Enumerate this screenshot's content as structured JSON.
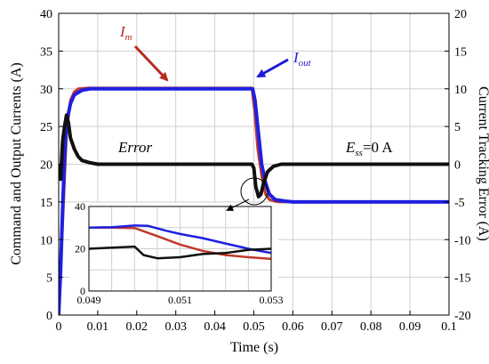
{
  "chart_data": [
    {
      "type": "line",
      "xlabel": "Time (s)",
      "ylabel_left": "Command and Output Currents (A)",
      "ylabel_right": "Current Tracking Error (A)",
      "xlim": [
        0,
        0.1
      ],
      "ylim_left": [
        0,
        40
      ],
      "ylim_right": [
        -20,
        20
      ],
      "grid": true,
      "x_ticks": [
        "0",
        "0.01",
        "0.02",
        "0.03",
        "0.04",
        "0.05",
        "0.06",
        "0.07",
        "0.08",
        "0.09",
        "0.1"
      ],
      "y_ticks_left": [
        "0",
        "5",
        "10",
        "15",
        "20",
        "25",
        "30",
        "35",
        "40"
      ],
      "y_ticks_right": [
        "-20",
        "-15",
        "-10",
        "-5",
        "0",
        "5",
        "10",
        "15",
        "20"
      ],
      "annotations": [
        {
          "label": "Im",
          "base": "I",
          "sub": "m",
          "color": "#b52a1d"
        },
        {
          "label": "Iout",
          "base": "I",
          "sub": "out",
          "color": "#1a1ad6"
        },
        {
          "label": "Error"
        },
        {
          "label": "Ess=0 A",
          "base": "E",
          "sub": "ss",
          "rest": "=0 A"
        }
      ],
      "series": [
        {
          "name": "Im",
          "color": "#c0392b",
          "axis": "left",
          "points": [
            [
              0,
              0
            ],
            [
              0.001,
              12
            ],
            [
              0.002,
              24
            ],
            [
              0.003,
              28.5
            ],
            [
              0.004,
              29.6
            ],
            [
              0.005,
              30
            ],
            [
              0.0075,
              30.1
            ],
            [
              0.01,
              30.1
            ],
            [
              0.02,
              30.1
            ],
            [
              0.03,
              30.1
            ],
            [
              0.04,
              30.1
            ],
            [
              0.0495,
              30.1
            ],
            [
              0.0502,
              27
            ],
            [
              0.051,
              22
            ],
            [
              0.052,
              18.5
            ],
            [
              0.053,
              16
            ],
            [
              0.054,
              15.3
            ],
            [
              0.056,
              15
            ],
            [
              0.06,
              15
            ],
            [
              0.07,
              15
            ],
            [
              0.08,
              15
            ],
            [
              0.09,
              15
            ],
            [
              0.1,
              15
            ]
          ]
        },
        {
          "name": "Iout",
          "color": "#1f1fe0",
          "axis": "left",
          "points": [
            [
              0,
              0
            ],
            [
              0.0005,
              6
            ],
            [
              0.001,
              14
            ],
            [
              0.0015,
              21
            ],
            [
              0.002,
              25.5
            ],
            [
              0.003,
              28
            ],
            [
              0.004,
              29.2
            ],
            [
              0.006,
              29.8
            ],
            [
              0.008,
              30
            ],
            [
              0.01,
              30
            ],
            [
              0.02,
              30
            ],
            [
              0.03,
              30
            ],
            [
              0.04,
              30
            ],
            [
              0.0497,
              30
            ],
            [
              0.0503,
              28.5
            ],
            [
              0.0508,
              26
            ],
            [
              0.0515,
              22.5
            ],
            [
              0.052,
              20
            ],
            [
              0.053,
              17.5
            ],
            [
              0.054,
              16
            ],
            [
              0.0555,
              15.3
            ],
            [
              0.058,
              15.1
            ],
            [
              0.06,
              15
            ],
            [
              0.07,
              15
            ],
            [
              0.08,
              15
            ],
            [
              0.09,
              15
            ],
            [
              0.1,
              15
            ]
          ]
        },
        {
          "name": "Error",
          "color": "#111111",
          "axis": "right",
          "points": [
            [
              0,
              0
            ],
            [
              0.0005,
              -2
            ],
            [
              0.001,
              3
            ],
            [
              0.0015,
              5
            ],
            [
              0.002,
              6.5
            ],
            [
              0.0025,
              5.5
            ],
            [
              0.003,
              3.5
            ],
            [
              0.004,
              2
            ],
            [
              0.005,
              1
            ],
            [
              0.006,
              0.5
            ],
            [
              0.008,
              0.2
            ],
            [
              0.01,
              0
            ],
            [
              0.02,
              0
            ],
            [
              0.03,
              0
            ],
            [
              0.04,
              0
            ],
            [
              0.0495,
              0
            ],
            [
              0.05,
              -0.5
            ],
            [
              0.0505,
              -3
            ],
            [
              0.0512,
              -4.3
            ],
            [
              0.0518,
              -4
            ],
            [
              0.0525,
              -2.5
            ],
            [
              0.0535,
              -1
            ],
            [
              0.055,
              -0.3
            ],
            [
              0.057,
              0
            ],
            [
              0.06,
              0
            ],
            [
              0.07,
              0
            ],
            [
              0.08,
              0
            ],
            [
              0.09,
              0
            ],
            [
              0.1,
              0
            ]
          ]
        }
      ]
    },
    {
      "type": "line",
      "role": "inset",
      "xlim": [
        0.049,
        0.053
      ],
      "ylim": [
        0,
        40
      ],
      "grid": true,
      "x_ticks": [
        "0.049",
        "0.051",
        "0.053"
      ],
      "y_ticks": [
        "0",
        "20",
        "40"
      ],
      "series": [
        {
          "name": "Im",
          "color": "#c0392b",
          "points": [
            [
              0.049,
              30
            ],
            [
              0.0495,
              30
            ],
            [
              0.05,
              29.8
            ],
            [
              0.0505,
              26
            ],
            [
              0.051,
              22
            ],
            [
              0.0515,
              19
            ],
            [
              0.052,
              17
            ],
            [
              0.0525,
              16
            ],
            [
              0.053,
              15.2
            ]
          ]
        },
        {
          "name": "Iout",
          "color": "#1f1fe0",
          "points": [
            [
              0.049,
              30
            ],
            [
              0.0495,
              30.2
            ],
            [
              0.05,
              31
            ],
            [
              0.0503,
              30.8
            ],
            [
              0.0507,
              28.5
            ],
            [
              0.051,
              27
            ],
            [
              0.0515,
              25
            ],
            [
              0.052,
              22.5
            ],
            [
              0.0525,
              20
            ],
            [
              0.053,
              18
            ]
          ]
        },
        {
          "name": "Error",
          "color": "#111111",
          "points": [
            [
              0.049,
              20
            ],
            [
              0.0495,
              20.5
            ],
            [
              0.05,
              21
            ],
            [
              0.0502,
              17
            ],
            [
              0.0505,
              15.5
            ],
            [
              0.051,
              16
            ],
            [
              0.0515,
              17.5
            ],
            [
              0.052,
              18
            ],
            [
              0.0525,
              19.5
            ],
            [
              0.053,
              20
            ]
          ]
        }
      ]
    }
  ]
}
